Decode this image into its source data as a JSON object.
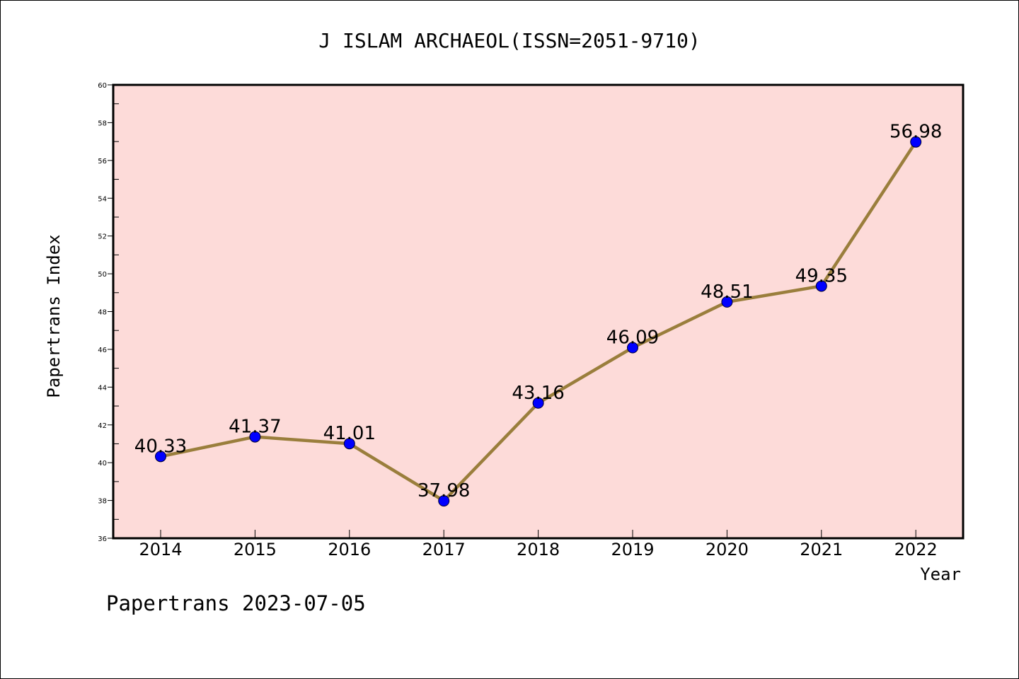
{
  "chart_data": {
    "type": "line",
    "title": "J ISLAM ARCHAEOL(ISSN=2051-9710)",
    "xlabel": "Year",
    "ylabel": "Papertrans Index",
    "categories": [
      "2014",
      "2015",
      "2016",
      "2017",
      "2018",
      "2019",
      "2020",
      "2021",
      "2022"
    ],
    "values": [
      40.33,
      41.37,
      41.01,
      37.98,
      43.16,
      46.09,
      48.51,
      49.35,
      56.98
    ],
    "data_labels": [
      "40.33",
      "41.37",
      "41.01",
      "37.98",
      "43.16",
      "46.09",
      "48.51",
      "49.35",
      "56.98"
    ],
    "yticks": [
      36,
      38,
      40,
      42,
      44,
      46,
      48,
      50,
      52,
      54,
      56,
      58,
      60
    ],
    "ylim": [
      36,
      60
    ],
    "grid": false,
    "legend": "none",
    "colors": {
      "plot_background": "#fddbd9",
      "line": "#9a7e3c",
      "marker": "#0000ff"
    }
  },
  "footer": {
    "text": "Papertrans 2023-07-05"
  }
}
